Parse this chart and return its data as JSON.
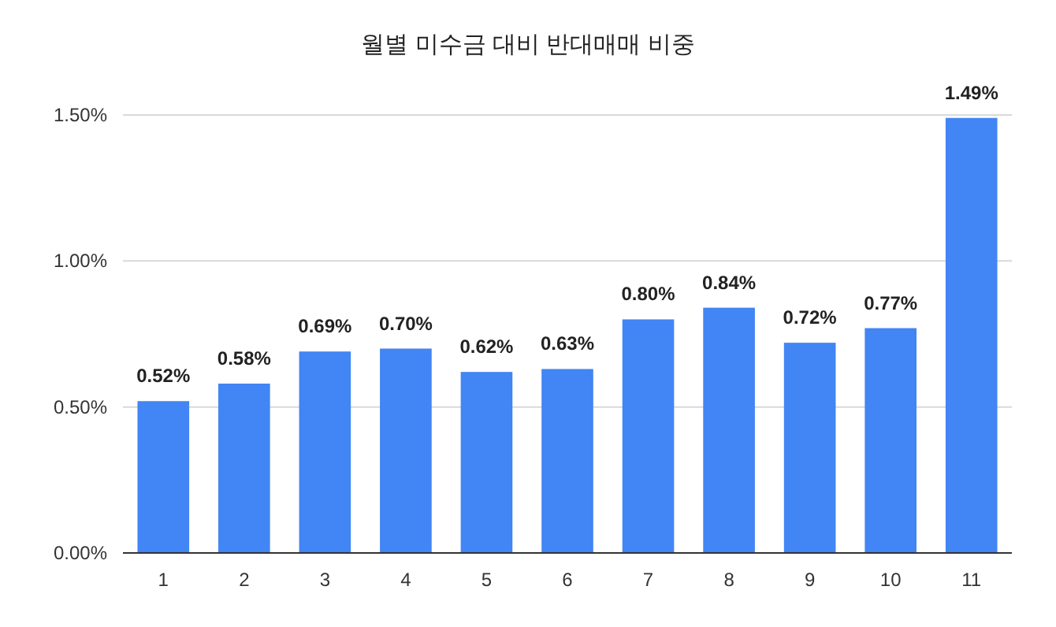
{
  "chart_data": {
    "type": "bar",
    "title": "월별 미수금 대비 반대매매 비중",
    "categories": [
      "1",
      "2",
      "3",
      "4",
      "5",
      "6",
      "7",
      "8",
      "9",
      "10",
      "11"
    ],
    "values": [
      0.52,
      0.58,
      0.69,
      0.7,
      0.62,
      0.63,
      0.8,
      0.84,
      0.72,
      0.77,
      1.49
    ],
    "value_labels": [
      "0.52%",
      "0.58%",
      "0.69%",
      "0.70%",
      "0.62%",
      "0.63%",
      "0.80%",
      "0.84%",
      "0.72%",
      "0.77%",
      "1.49%"
    ],
    "color": "#4285f4",
    "ylim": [
      0,
      1.5
    ],
    "yticks": [
      {
        "value": 0,
        "label": "0.00%"
      },
      {
        "value": 0.5,
        "label": "0.50%"
      },
      {
        "value": 1,
        "label": "1.00%"
      },
      {
        "value": 1.5,
        "label": "1.50%"
      }
    ],
    "grid": "y"
  }
}
